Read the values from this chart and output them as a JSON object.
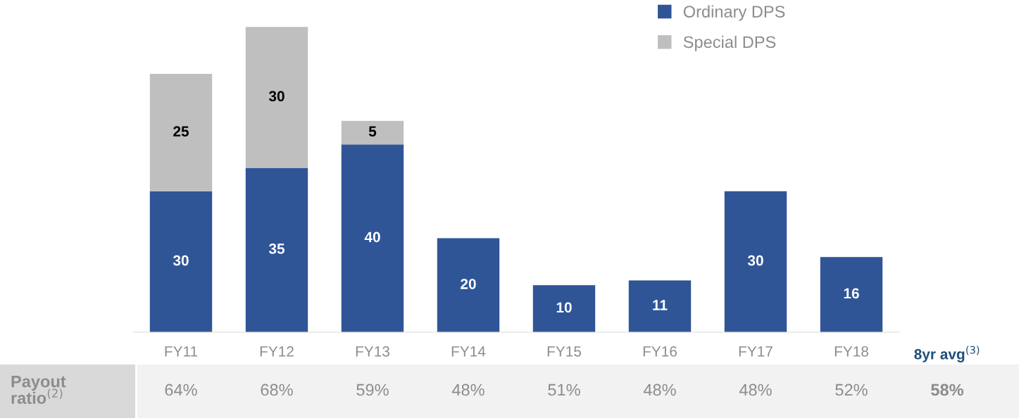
{
  "chart_data": [
    {
      "type": "bar",
      "stacked": true,
      "categories": [
        "FY11",
        "FY12",
        "FY13",
        "FY14",
        "FY15",
        "FY16",
        "FY17",
        "FY18",
        "8yr avg$^{(3)}$"
      ],
      "series": [
        {
          "name": "Ordinary DPS",
          "color": "#2f5597",
          "values": [
            30,
            35,
            40,
            20,
            10,
            11,
            30,
            16,
            null
          ]
        },
        {
          "name": "Special DPS",
          "color": "#bfbfbf",
          "values": [
            25,
            30,
            5,
            null,
            null,
            null,
            null,
            null,
            null
          ]
        }
      ],
      "ylim": [
        0,
        70
      ],
      "tick_labels": "x",
      "data_labels": true,
      "legend": "top right",
      "grid": false
    },
    {
      "type": "other",
      "title": "Payout\nratio$^{(2)}$",
      "categories": [
        null,
        null,
        null,
        null,
        null,
        null,
        null,
        null,
        null
      ],
      "value_labels": [
        "64%",
        "68%",
        "59%",
        "48%",
        "51%",
        "48%",
        "48%",
        "52%",
        "58%"
      ]
    }
  ]
}
